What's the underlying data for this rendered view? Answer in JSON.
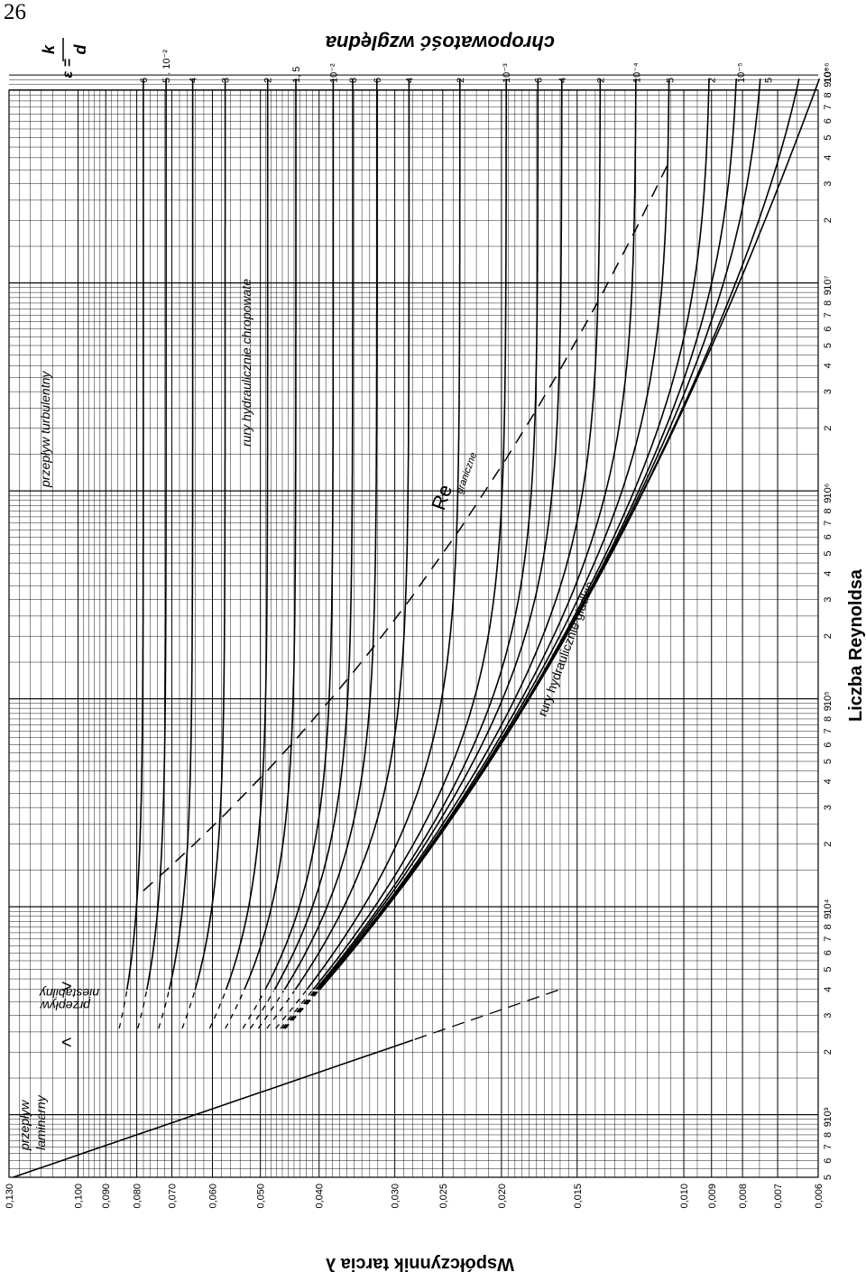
{
  "page": {
    "number": "26"
  },
  "chart_data": {
    "type": "line",
    "title": "",
    "xlabel": "Liczba Reynoldsa",
    "ylabel": "Współczynnik tarcia λ",
    "x_scale": "log",
    "y_scale": "log",
    "xlim": [
      500,
      100000000
    ],
    "ylim": [
      0.006,
      0.13
    ],
    "grid": true,
    "orientation": "rotated 90° clockwise",
    "x_tick_labels": [
      {
        "x": 500,
        "label": "5"
      },
      {
        "x": 600,
        "label": "6"
      },
      {
        "x": 700,
        "label": "7"
      },
      {
        "x": 800,
        "label": "8"
      },
      {
        "x": 900,
        "label": "9"
      },
      {
        "x": 1000,
        "label": "10³"
      },
      {
        "x": 2000,
        "label": "2"
      },
      {
        "x": 3000,
        "label": "3"
      },
      {
        "x": 4000,
        "label": "4"
      },
      {
        "x": 5000,
        "label": "5"
      },
      {
        "x": 6000,
        "label": "6"
      },
      {
        "x": 7000,
        "label": "7"
      },
      {
        "x": 8000,
        "label": "8"
      },
      {
        "x": 9000,
        "label": "9"
      },
      {
        "x": 10000,
        "label": "10⁴"
      },
      {
        "x": 20000,
        "label": "2"
      },
      {
        "x": 30000,
        "label": "3"
      },
      {
        "x": 40000,
        "label": "4"
      },
      {
        "x": 50000,
        "label": "5"
      },
      {
        "x": 60000,
        "label": "6"
      },
      {
        "x": 70000,
        "label": "7"
      },
      {
        "x": 80000,
        "label": "8"
      },
      {
        "x": 90000,
        "label": "9"
      },
      {
        "x": 100000,
        "label": "10⁵"
      },
      {
        "x": 200000,
        "label": "2"
      },
      {
        "x": 300000,
        "label": "3"
      },
      {
        "x": 400000,
        "label": "4"
      },
      {
        "x": 500000,
        "label": "5"
      },
      {
        "x": 600000,
        "label": "6"
      },
      {
        "x": 700000,
        "label": "7"
      },
      {
        "x": 800000,
        "label": "8"
      },
      {
        "x": 900000,
        "label": "9"
      },
      {
        "x": 1000000,
        "label": "10⁶"
      },
      {
        "x": 2000000,
        "label": "2"
      },
      {
        "x": 3000000,
        "label": "3"
      },
      {
        "x": 4000000,
        "label": "4"
      },
      {
        "x": 5000000,
        "label": "5"
      },
      {
        "x": 6000000,
        "label": "6"
      },
      {
        "x": 7000000,
        "label": "7"
      },
      {
        "x": 8000000,
        "label": "8"
      },
      {
        "x": 9000000,
        "label": "9"
      },
      {
        "x": 10000000,
        "label": "10⁷"
      },
      {
        "x": 20000000,
        "label": "2"
      },
      {
        "x": 30000000,
        "label": "3"
      },
      {
        "x": 40000000,
        "label": "4"
      },
      {
        "x": 50000000,
        "label": "5"
      },
      {
        "x": 60000000,
        "label": "6"
      },
      {
        "x": 70000000,
        "label": "7"
      },
      {
        "x": 80000000,
        "label": "8"
      },
      {
        "x": 90000000,
        "label": "9"
      },
      {
        "x": 100000000,
        "label": "10⁸"
      }
    ],
    "y_tick_labels": [
      {
        "y": 0.13,
        "label": "0,130"
      },
      {
        "y": 0.1,
        "label": "0,100"
      },
      {
        "y": 0.09,
        "label": "0,090"
      },
      {
        "y": 0.08,
        "label": "0,080"
      },
      {
        "y": 0.07,
        "label": "0,070"
      },
      {
        "y": 0.06,
        "label": "0,060"
      },
      {
        "y": 0.05,
        "label": "0,050"
      },
      {
        "y": 0.04,
        "label": "0,040"
      },
      {
        "y": 0.03,
        "label": "0,030"
      },
      {
        "y": 0.025,
        "label": "0,025"
      },
      {
        "y": 0.02,
        "label": "0,020"
      },
      {
        "y": 0.015,
        "label": "0,015"
      },
      {
        "y": 0.01,
        "label": "0,010"
      },
      {
        "y": 0.009,
        "label": "0,009"
      },
      {
        "y": 0.008,
        "label": "0,008"
      },
      {
        "y": 0.007,
        "label": "0,007"
      },
      {
        "y": 0.006,
        "label": "0,006"
      }
    ],
    "roughness_header": {
      "eps": "ε =",
      "numerator": "k",
      "denominator": "d",
      "title": "chropowatość względna"
    },
    "roughness_curves": [
      {
        "eps": 0.06,
        "label": "6"
      },
      {
        "eps": 0.05,
        "label": "5 . 10⁻²"
      },
      {
        "eps": 0.04,
        "label": "4"
      },
      {
        "eps": 0.03,
        "label": "3"
      },
      {
        "eps": 0.02,
        "label": "2"
      },
      {
        "eps": 0.015,
        "label": "1, 5"
      },
      {
        "eps": 0.01,
        "label": "10⁻²"
      },
      {
        "eps": 0.008,
        "label": "8"
      },
      {
        "eps": 0.006,
        "label": "6"
      },
      {
        "eps": 0.004,
        "label": "4"
      },
      {
        "eps": 0.002,
        "label": "2"
      },
      {
        "eps": 0.001,
        "label": "10⁻³"
      },
      {
        "eps": 0.0006,
        "label": "6"
      },
      {
        "eps": 0.0004,
        "label": "4"
      },
      {
        "eps": 0.0002,
        "label": "2"
      },
      {
        "eps": 0.0001,
        "label": "10⁻⁴"
      },
      {
        "eps": 5e-05,
        "label": "5"
      },
      {
        "eps": 2e-05,
        "label": "2"
      },
      {
        "eps": 1e-05,
        "label": "10⁻⁵"
      },
      {
        "eps": 5e-06,
        "label": "5"
      },
      {
        "eps": 1e-06,
        "label": "10⁻⁶"
      }
    ],
    "laminar_line": {
      "formula": "λ = 64 / Re",
      "x_range": [
        500,
        2300
      ],
      "dashed_to": 4000
    },
    "re_boundary": {
      "formula": "Re · √λ · ε = 200",
      "dashed": true
    },
    "annotations": {
      "laminar": [
        "przepływ",
        "laminarny"
      ],
      "unstable": [
        "przepływ",
        "niestabilny"
      ],
      "turbulent": "przepływ turbulentny",
      "rough_pipes": "rury hydraulicznie chropowate",
      "smooth_pipes": "rury hydraulicznie gładkie",
      "re_boundary_main": "Re",
      "re_boundary_sub": "graniczne"
    }
  }
}
